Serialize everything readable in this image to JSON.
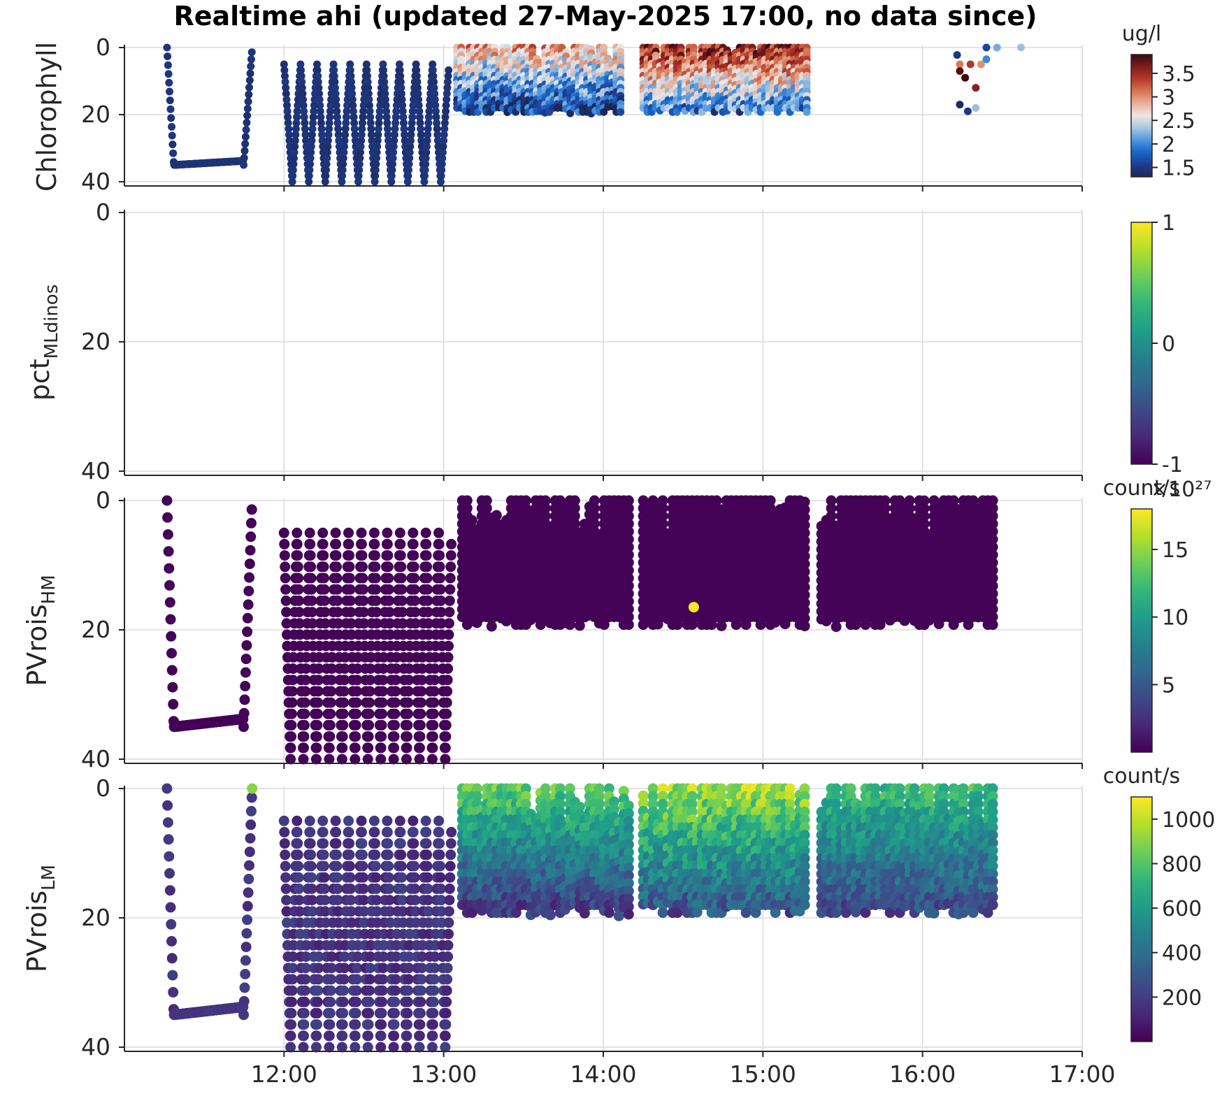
{
  "title": "Realtime ahi (updated 27-May-2025 17:00, no data since)",
  "chart_data": {
    "type": "scatter",
    "x_axis": {
      "type": "time",
      "range": [
        "11:00",
        "17:00"
      ],
      "ticks": [
        "12:00",
        "13:00",
        "14:00",
        "15:00",
        "16:00",
        "17:00"
      ],
      "grid": true
    },
    "panels": [
      {
        "id": "chlorophyll",
        "ylabel": "Chlorophyll",
        "ylabel_sub": "",
        "ylim": [
          40,
          0
        ],
        "yticks": [
          "0",
          "20",
          "40"
        ],
        "colorbar": {
          "unit": "ug/l",
          "colormap": "balance",
          "range": [
            1.3,
            3.9
          ],
          "ticks": [
            1.5,
            2,
            2.5,
            3,
            3.5
          ],
          "tick_labels": [
            "1.5",
            "2",
            "2.5",
            "3",
            "3.5"
          ],
          "exponent": ""
        },
        "segments": [
          {
            "start": "11:16",
            "end": "11:48",
            "kind": "dive",
            "min_depth": 0,
            "max_depth": 35,
            "value": 1.45,
            "variation": 0.05
          },
          {
            "start": "12:00",
            "end": "13:02",
            "kind": "yo",
            "cycles": 10,
            "min_depth": 5,
            "max_depth": 40,
            "value": 1.45,
            "variation": 0.05
          },
          {
            "start": "13:05",
            "end": "14:08",
            "kind": "box",
            "min_depth": 0,
            "max_depth": 20,
            "value_top": 2.9,
            "value_bottom": 1.55,
            "variation": 0.5
          },
          {
            "start": "14:15",
            "end": "15:18",
            "kind": "box",
            "min_depth": 0,
            "max_depth": 20,
            "value_top": 3.6,
            "value_bottom": 1.8,
            "variation": 0.5
          }
        ],
        "points": [
          {
            "x": "16:13",
            "y": 2.2,
            "value": 1.5
          },
          {
            "x": "16:14",
            "y": 5,
            "value": 3.1
          },
          {
            "x": "16:14",
            "y": 7,
            "value": 3.8
          },
          {
            "x": "16:16",
            "y": 9,
            "value": 3.9
          },
          {
            "x": "16:18",
            "y": 5,
            "value": 3.4
          },
          {
            "x": "16:20",
            "y": 12,
            "value": 3.6
          },
          {
            "x": "16:22",
            "y": 5,
            "value": 3.0
          },
          {
            "x": "16:14",
            "y": 17,
            "value": 1.35
          },
          {
            "x": "16:17",
            "y": 19,
            "value": 1.5
          },
          {
            "x": "16:20",
            "y": 18,
            "value": 2.3
          },
          {
            "x": "16:24",
            "y": 3.5,
            "value": 2.0
          },
          {
            "x": "16:24",
            "y": 0,
            "value": 1.6
          },
          {
            "x": "16:28",
            "y": 0,
            "value": 2.2
          },
          {
            "x": "16:37",
            "y": 0,
            "value": 2.3
          }
        ]
      },
      {
        "id": "pct_mldinos",
        "ylabel": "pct",
        "ylabel_sub": "MLdinos",
        "ylim": [
          40,
          0
        ],
        "yticks": [
          "0",
          "20",
          "40"
        ],
        "colorbar": {
          "unit": "",
          "colormap": "viridis",
          "range": [
            -1,
            1
          ],
          "ticks": [
            -1,
            0,
            1
          ],
          "tick_labels": [
            "-1",
            "0",
            "1"
          ],
          "exponent": ""
        },
        "segments": [],
        "points": []
      },
      {
        "id": "pvrois_hm",
        "ylabel": "PVrois",
        "ylabel_sub": "HM",
        "ylim": [
          40,
          0
        ],
        "yticks": [
          "0",
          "20",
          "40"
        ],
        "colorbar": {
          "unit": "count/s",
          "colormap": "viridis",
          "range": [
            0,
            18
          ],
          "ticks": [
            5,
            10,
            15
          ],
          "tick_labels": [
            "5",
            "10",
            "15"
          ],
          "exponent": "×10²⁷"
        },
        "segments": [
          {
            "start": "11:16",
            "end": "11:48",
            "kind": "dive",
            "min_depth": 0,
            "max_depth": 35,
            "value": 0.1,
            "variation": 0
          },
          {
            "start": "12:00",
            "end": "13:03",
            "kind": "yo",
            "cycles": 13,
            "min_depth": 5,
            "max_depth": 40,
            "value": 0.1,
            "variation": 0
          },
          {
            "start": "13:07",
            "end": "14:11",
            "kind": "box",
            "min_depth": 0,
            "max_depth": 20,
            "value_top": 0.1,
            "value_bottom": 0.1,
            "variation": 0
          },
          {
            "start": "14:15",
            "end": "15:17",
            "kind": "box",
            "min_depth": 0,
            "max_depth": 20,
            "value_top": 0.1,
            "value_bottom": 0.1,
            "variation": 0
          },
          {
            "start": "15:22",
            "end": "16:27",
            "kind": "box",
            "min_depth": 0,
            "max_depth": 20,
            "value_top": 0.1,
            "value_bottom": 0.1,
            "variation": 0
          }
        ],
        "points": [
          {
            "x": "14:34",
            "y": 16.5,
            "value": 18
          }
        ]
      },
      {
        "id": "pvrois_lm",
        "ylabel": "PVrois",
        "ylabel_sub": "LM",
        "ylim": [
          40,
          0
        ],
        "yticks": [
          "0",
          "20",
          "40"
        ],
        "colorbar": {
          "unit": "count/s",
          "colormap": "viridis",
          "range": [
            0,
            1100
          ],
          "ticks": [
            200,
            400,
            600,
            800,
            1000
          ],
          "tick_labels": [
            "200",
            "400",
            "600",
            "800",
            "1000"
          ],
          "exponent": ""
        },
        "segments": [
          {
            "start": "11:16",
            "end": "11:48",
            "kind": "dive",
            "min_depth": 0,
            "max_depth": 35,
            "value": 170,
            "variation": 40
          },
          {
            "start": "12:00",
            "end": "13:03",
            "kind": "yo",
            "cycles": 13,
            "min_depth": 5,
            "max_depth": 40,
            "value": 160,
            "variation": 60
          },
          {
            "start": "13:07",
            "end": "14:11",
            "kind": "box",
            "min_depth": 0,
            "max_depth": 20,
            "value_top": 820,
            "value_bottom": 150,
            "variation": 120
          },
          {
            "start": "14:15",
            "end": "15:17",
            "kind": "box",
            "min_depth": 0,
            "max_depth": 20,
            "value_top": 950,
            "value_bottom": 250,
            "variation": 150
          },
          {
            "start": "15:22",
            "end": "16:27",
            "kind": "box",
            "min_depth": 0,
            "max_depth": 20,
            "value_top": 740,
            "value_bottom": 220,
            "variation": 120
          }
        ],
        "points": [
          {
            "x": "11:48",
            "y": 0,
            "value": 900
          }
        ]
      }
    ]
  }
}
